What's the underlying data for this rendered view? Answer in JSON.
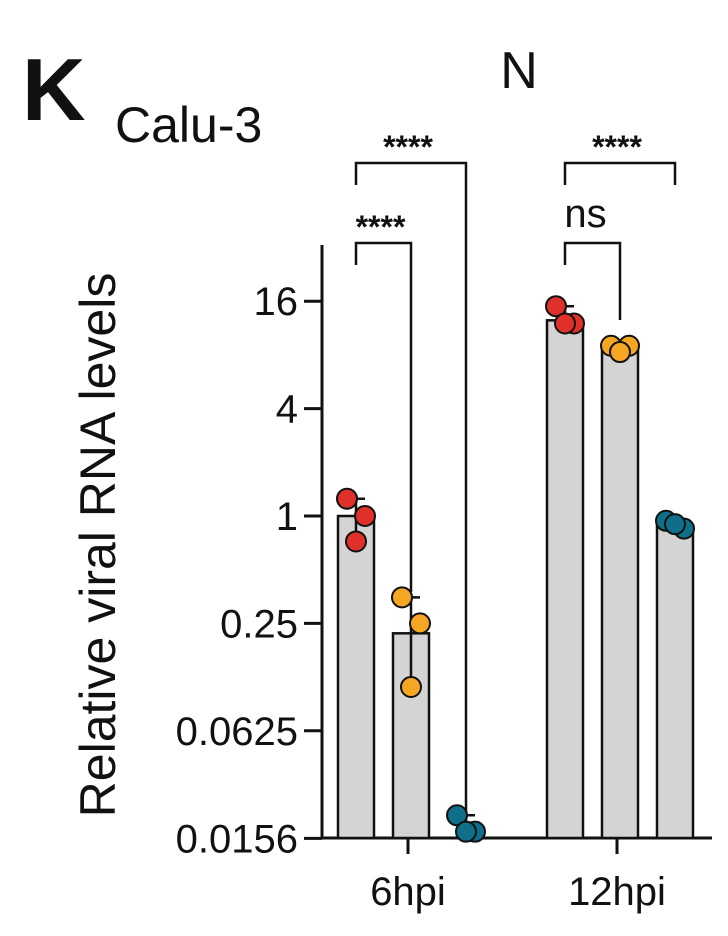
{
  "chart_data": {
    "type": "bar",
    "panel_label": "K",
    "subtitle": "Calu-3",
    "title": "N",
    "ylabel": "Relative viral RNA levels",
    "xlabel": "",
    "y_scale": "log2",
    "ylim": [
      0.0156,
      32
    ],
    "y_ticks": [
      0.0156,
      0.0625,
      0.25,
      1,
      4,
      16
    ],
    "y_tick_labels": [
      "0.0156",
      "0.0625",
      "0.25",
      "1",
      "4",
      "16"
    ],
    "categories": [
      "6hpi",
      "12hpi"
    ],
    "series": [
      {
        "color": "#e0302a",
        "values": [
          1.0,
          12.5
        ],
        "points": [
          [
            1.25,
            1.0,
            0.72
          ],
          [
            15.0,
            12.0,
            12.0
          ]
        ]
      },
      {
        "color": "#f5a623",
        "values": [
          0.22,
          8.7
        ],
        "points": [
          [
            0.35,
            0.25,
            0.11
          ],
          [
            9.0,
            9.0,
            8.3
          ]
        ]
      },
      {
        "color": "#0f6f8a",
        "values": [
          0.0156,
          0.88
        ],
        "points": [
          [
            0.021,
            0.017,
            0.017
          ],
          [
            0.94,
            0.85,
            0.9
          ]
        ]
      }
    ],
    "bar_color": "#d4d4d4",
    "comparisons": [
      {
        "group": 0,
        "from": 0,
        "to": 1,
        "label": "****"
      },
      {
        "group": 0,
        "from": 0,
        "to": 2,
        "label": "****"
      },
      {
        "group": 1,
        "from": 0,
        "to": 1,
        "label": "ns"
      },
      {
        "group": 1,
        "from": 0,
        "to": 2,
        "label": "****"
      }
    ]
  }
}
